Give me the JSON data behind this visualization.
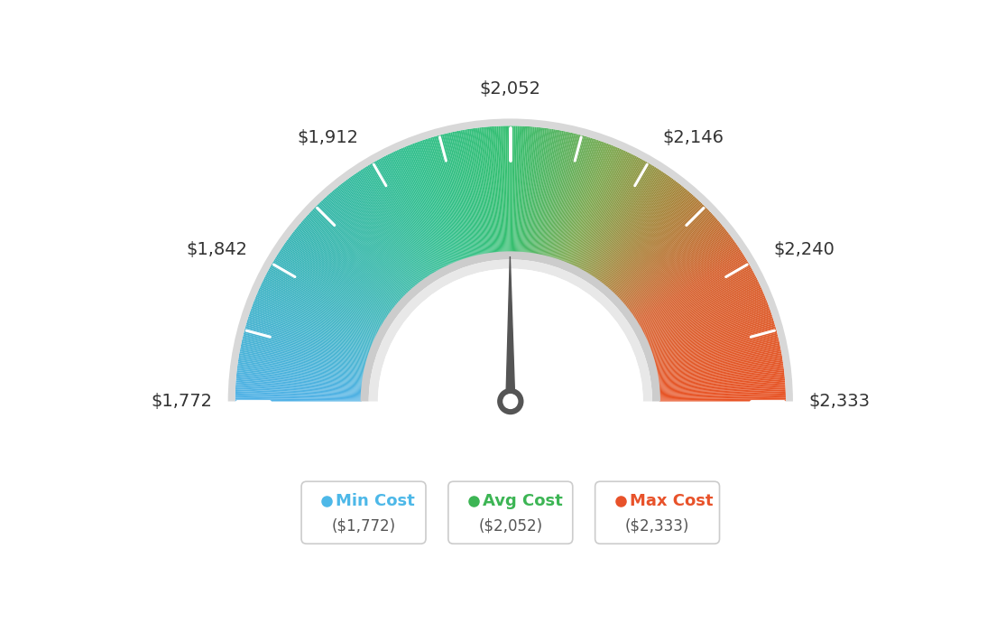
{
  "min_val": 1772,
  "max_val": 2333,
  "avg_val": 2052,
  "labels": {
    "min": "$1,772",
    "val1": "$1,842",
    "val2": "$1,912",
    "avg": "$2,052",
    "val3": "$2,146",
    "val4": "$2,240",
    "max": "$2,333"
  },
  "legend": [
    {
      "label": "Min Cost",
      "value": "($1,772)",
      "color": "#4db8e8"
    },
    {
      "label": "Avg Cost",
      "value": "($2,052)",
      "color": "#3cb554"
    },
    {
      "label": "Max Cost",
      "value": "($2,333)",
      "color": "#e8522a"
    }
  ],
  "color_stops": [
    [
      0.0,
      [
        0.318,
        0.698,
        0.902
      ]
    ],
    [
      0.2,
      [
        0.22,
        0.71,
        0.71
      ]
    ],
    [
      0.38,
      [
        0.188,
        0.749,
        0.549
      ]
    ],
    [
      0.5,
      [
        0.208,
        0.749,
        0.439
      ]
    ],
    [
      0.62,
      [
        0.49,
        0.659,
        0.31
      ]
    ],
    [
      0.72,
      [
        0.659,
        0.51,
        0.22
      ]
    ],
    [
      0.82,
      [
        0.839,
        0.38,
        0.18
      ]
    ],
    [
      1.0,
      [
        0.91,
        0.329,
        0.149
      ]
    ]
  ],
  "background_color": "#ffffff"
}
